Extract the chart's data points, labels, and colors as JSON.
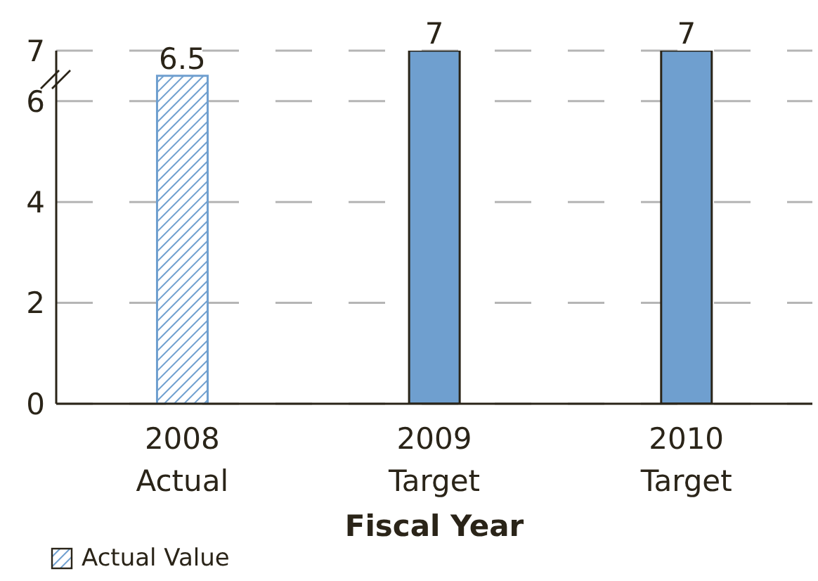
{
  "chart_data": {
    "type": "bar",
    "xlabel": "Fiscal Year",
    "categories": [
      "2008\nActual",
      "2009\nTarget",
      "2010\nTarget"
    ],
    "series": [
      {
        "name": "Actual Value",
        "color": "#6f9fcf",
        "values": [
          6.5,
          null,
          null
        ]
      },
      {
        "color": "#6f9fcf",
        "values": [
          null,
          7,
          7
        ]
      }
    ],
    "stacked": true,
    "ylim": [
      0,
      7
    ],
    "yticks": [
      0,
      2,
      4,
      6,
      7
    ],
    "grid": "y",
    "data_labels": true,
    "legend": "bottom left"
  }
}
